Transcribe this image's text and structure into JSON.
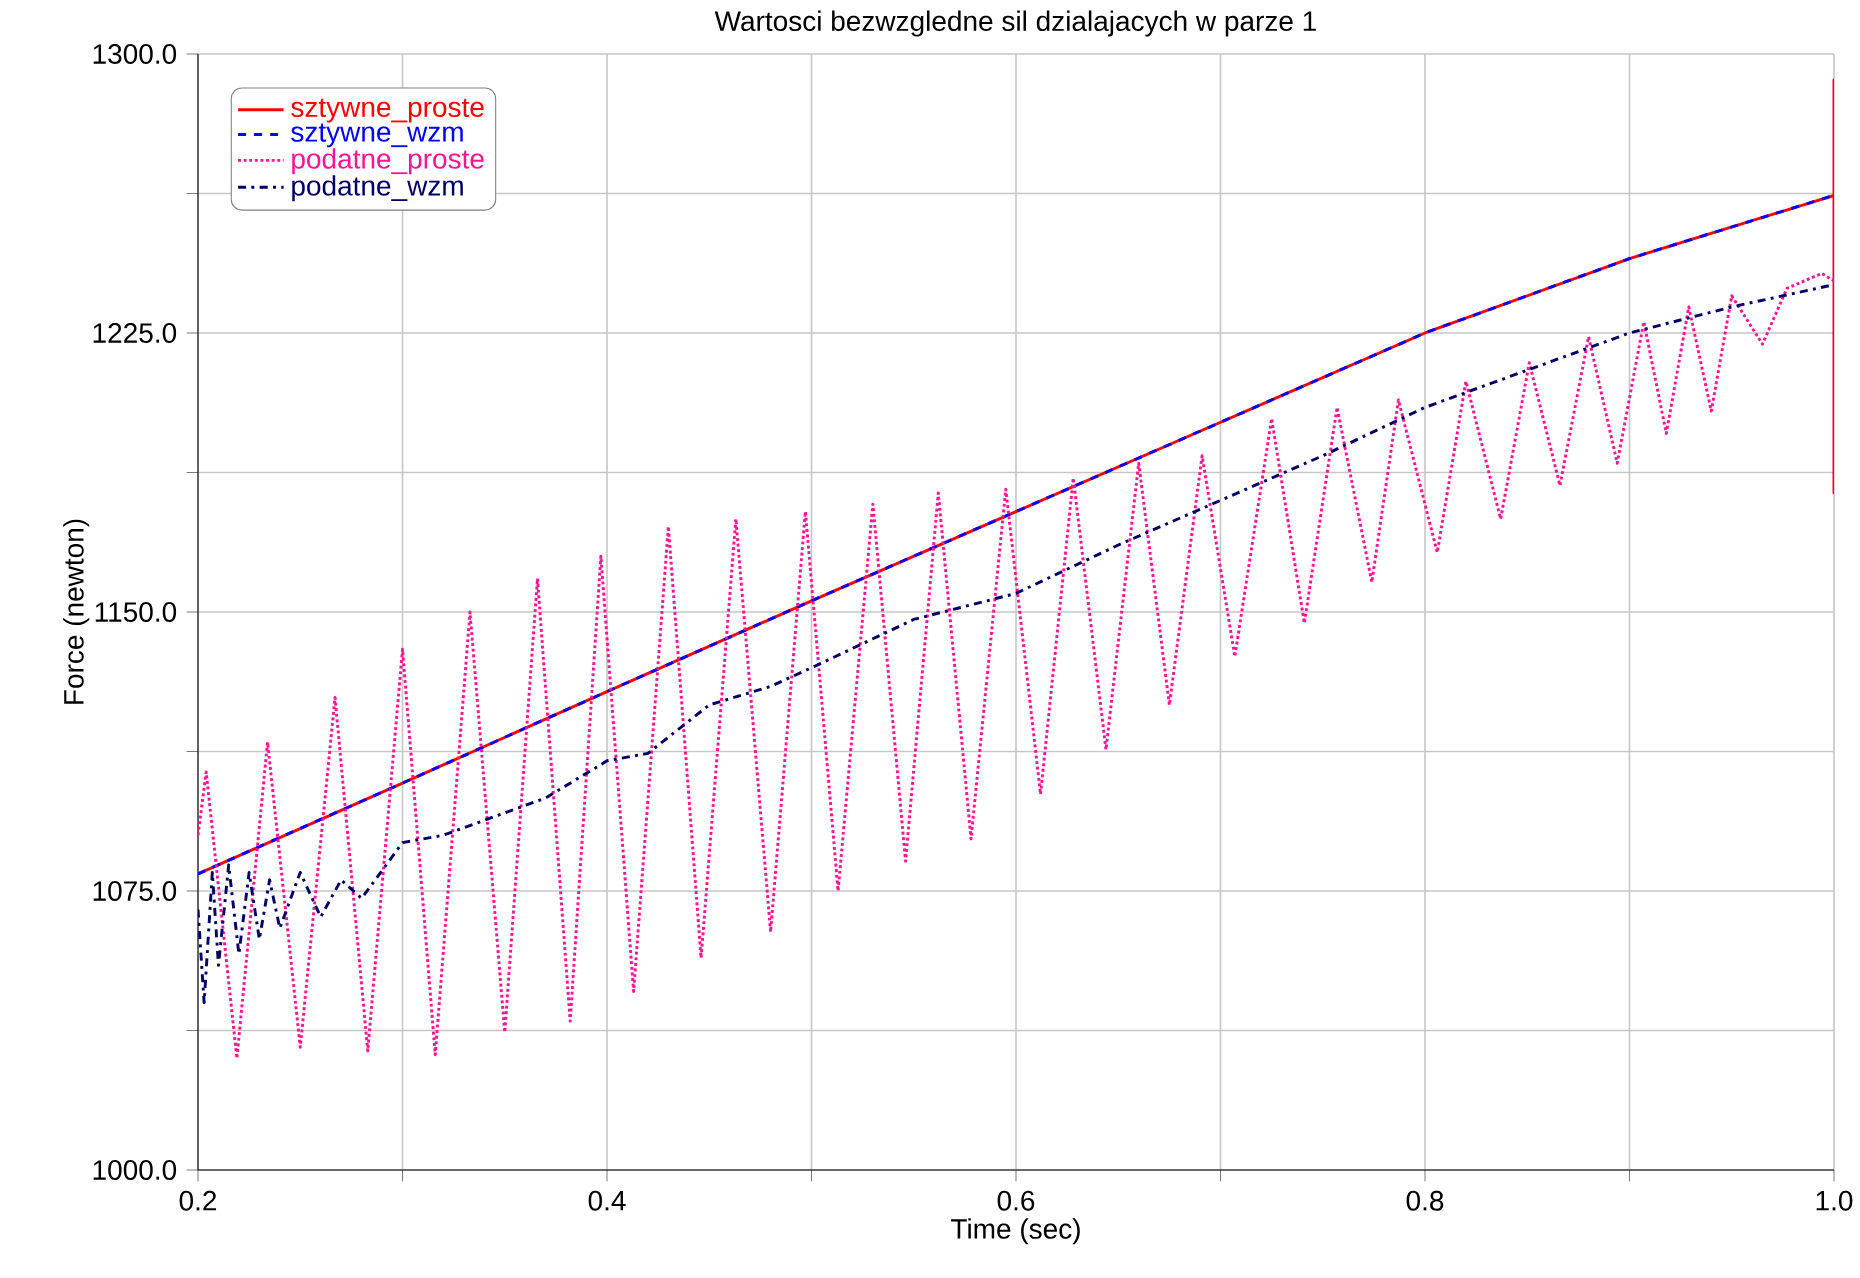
{
  "chart_data": {
    "type": "line",
    "title": "Wartosci bezwzgledne sil dzialajacych w parze 1",
    "xlabel": "Time (sec)",
    "ylabel": "Force (newton)",
    "xlim": [
      0.2,
      1.0
    ],
    "ylim": [
      1000,
      1300
    ],
    "xticks": [
      {
        "value": 0.2,
        "label": "0.2"
      },
      {
        "value": 0.3,
        "label": null
      },
      {
        "value": 0.4,
        "label": "0.4"
      },
      {
        "value": 0.5,
        "label": null
      },
      {
        "value": 0.6,
        "label": "0.6"
      },
      {
        "value": 0.7,
        "label": null
      },
      {
        "value": 0.8,
        "label": "0.8"
      },
      {
        "value": 0.9,
        "label": null
      },
      {
        "value": 1.0,
        "label": "1.0"
      }
    ],
    "yticks": [
      {
        "value": 1000,
        "label": "1000.0"
      },
      {
        "value": 1037.5,
        "label": null
      },
      {
        "value": 1075,
        "label": "1075.0"
      },
      {
        "value": 1112.5,
        "label": null
      },
      {
        "value": 1150,
        "label": "1150.0"
      },
      {
        "value": 1187.5,
        "label": null
      },
      {
        "value": 1225,
        "label": "1225.0"
      },
      {
        "value": 1262.5,
        "label": null
      },
      {
        "value": 1300,
        "label": "1300.0"
      }
    ],
    "grid": true,
    "legend": "top left",
    "series": [
      {
        "name": "sztywne_proste",
        "color": "#ff0000",
        "line_style": "solid",
        "x": [
          0.2,
          0.3,
          0.4,
          0.5,
          0.6,
          0.7,
          0.8,
          0.9,
          1.0,
          1.0,
          1.0,
          1.0
        ],
        "values": [
          1079.6,
          1104,
          1128.6,
          1153,
          1177,
          1201,
          1225,
          1245,
          1262,
          1293,
          1182,
          1262
        ]
      },
      {
        "name": "sztywne_wzm",
        "color": "#0000ff",
        "line_style": "dashed",
        "x": [
          0.2,
          0.3,
          0.4,
          0.5,
          0.6,
          0.7,
          0.8,
          0.9,
          1.0
        ],
        "values": [
          1079.6,
          1104,
          1128.6,
          1153,
          1177,
          1201,
          1225,
          1245,
          1262
        ]
      },
      {
        "name": "podatne_proste",
        "color": "#ff1493",
        "line_style": "dotted",
        "x": [
          0.2,
          0.204,
          0.219,
          0.234,
          0.25,
          0.267,
          0.283,
          0.3,
          0.316,
          0.333,
          0.35,
          0.366,
          0.382,
          0.397,
          0.413,
          0.43,
          0.446,
          0.463,
          0.48,
          0.497,
          0.513,
          0.53,
          0.546,
          0.562,
          0.578,
          0.595,
          0.612,
          0.628,
          0.644,
          0.66,
          0.675,
          0.691,
          0.707,
          0.725,
          0.741,
          0.757,
          0.774,
          0.787,
          0.806,
          0.82,
          0.837,
          0.851,
          0.866,
          0.88,
          0.894,
          0.907,
          0.918,
          0.929,
          0.94,
          0.95,
          0.965,
          0.977,
          0.994,
          1.0
        ],
        "values": [
          1090,
          1107,
          1030,
          1115,
          1033,
          1127,
          1032,
          1140,
          1031,
          1150,
          1037,
          1159,
          1040,
          1165,
          1048,
          1173,
          1057,
          1175,
          1064,
          1177,
          1075,
          1179,
          1083,
          1182,
          1089,
          1183,
          1101,
          1186,
          1113,
          1190,
          1125,
          1192,
          1138,
          1202,
          1147,
          1205,
          1158,
          1207,
          1166,
          1212,
          1175,
          1217,
          1184,
          1224,
          1190,
          1228,
          1198,
          1232,
          1204,
          1235,
          1222,
          1237,
          1241,
          1239
        ]
      },
      {
        "name": "podatne_wzm",
        "color": "#000066",
        "line_style": "dashdot",
        "x": [
          0.2,
          0.203,
          0.207,
          0.21,
          0.215,
          0.22,
          0.225,
          0.23,
          0.235,
          0.24,
          0.25,
          0.26,
          0.27,
          0.28,
          0.3,
          0.32,
          0.35,
          0.37,
          0.4,
          0.42,
          0.45,
          0.48,
          0.5,
          0.55,
          0.6,
          0.65,
          0.7,
          0.75,
          0.8,
          0.85,
          0.9,
          0.95,
          1.0
        ],
        "values": [
          1070,
          1045,
          1080,
          1055,
          1082,
          1058,
          1080,
          1062,
          1078,
          1065,
          1080,
          1068,
          1078,
          1073,
          1088,
          1090,
          1096,
          1100,
          1110,
          1112,
          1125,
          1130,
          1135,
          1148,
          1155,
          1168,
          1180,
          1192,
          1205,
          1215,
          1225,
          1232,
          1238
        ]
      }
    ]
  }
}
